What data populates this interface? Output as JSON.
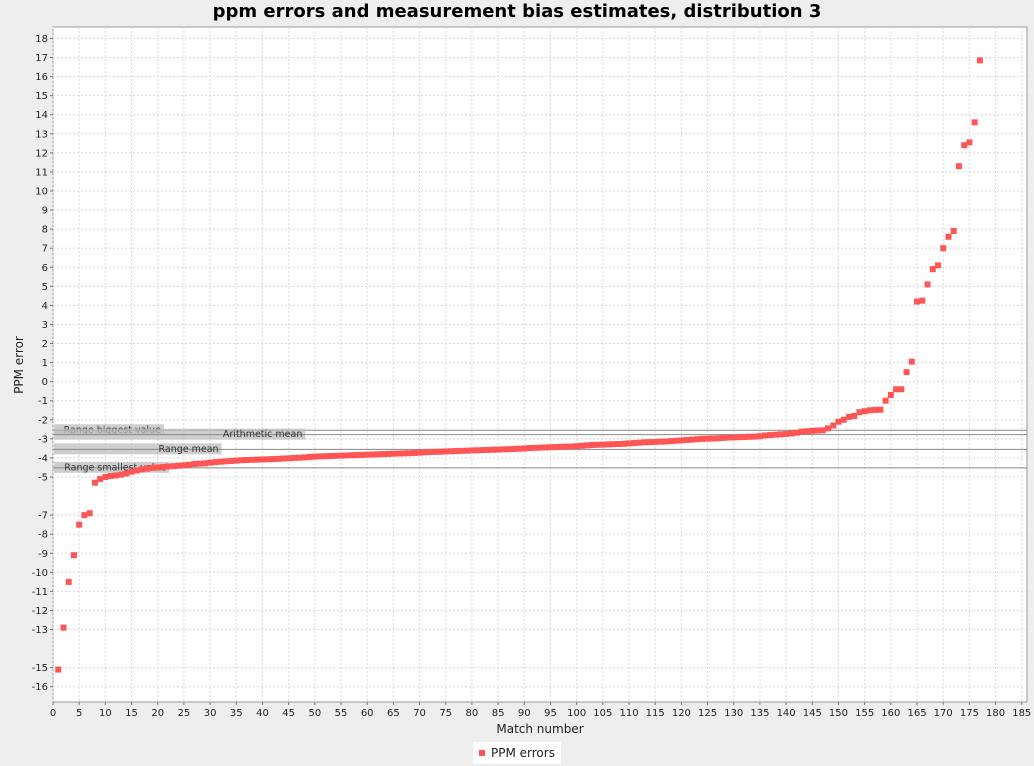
{
  "chart_data": {
    "type": "scatter",
    "title": "ppm errors and measurement bias estimates, distribution 3",
    "xlabel": "Match number",
    "ylabel": "PPM error",
    "xlim": [
      0,
      186
    ],
    "ylim": [
      -16.8,
      18.6
    ],
    "xticks": [
      0,
      5,
      10,
      15,
      20,
      25,
      30,
      35,
      40,
      45,
      50,
      55,
      60,
      65,
      70,
      75,
      80,
      85,
      90,
      95,
      100,
      105,
      110,
      115,
      120,
      125,
      130,
      135,
      140,
      145,
      150,
      155,
      160,
      165,
      170,
      175,
      180,
      185
    ],
    "yticks": [
      18,
      17,
      16,
      15,
      14,
      13,
      12,
      11,
      10,
      9,
      8,
      7,
      6,
      5,
      4,
      3,
      2,
      1,
      0,
      -1,
      -2,
      -3,
      -4,
      -5,
      -7,
      -8,
      -9,
      -10,
      -11,
      -12,
      -13,
      -15,
      -16
    ],
    "grid": true,
    "legend_position": "bottom-center",
    "series": [
      {
        "name": "PPM errors",
        "color": "#ff5555",
        "marker": "square",
        "points": [
          [
            1,
            -15.1
          ],
          [
            2,
            -12.9
          ],
          [
            3,
            -10.5
          ],
          [
            4,
            -9.1
          ],
          [
            5,
            -7.5
          ],
          [
            6,
            -7.0
          ],
          [
            7,
            -6.9
          ],
          [
            8,
            -5.3
          ],
          [
            9,
            -5.1
          ],
          [
            10,
            -5.0
          ],
          [
            11,
            -4.95
          ],
          [
            12,
            -4.92
          ],
          [
            13,
            -4.88
          ],
          [
            14,
            -4.82
          ],
          [
            15,
            -4.72
          ],
          [
            16,
            -4.66
          ],
          [
            17,
            -4.6
          ],
          [
            18,
            -4.56
          ],
          [
            19,
            -4.52
          ],
          [
            20,
            -4.5
          ],
          [
            21,
            -4.48
          ],
          [
            22,
            -4.45
          ],
          [
            23,
            -4.43
          ],
          [
            24,
            -4.41
          ],
          [
            25,
            -4.38
          ],
          [
            26,
            -4.36
          ],
          [
            27,
            -4.32
          ],
          [
            28,
            -4.3
          ],
          [
            29,
            -4.28
          ],
          [
            30,
            -4.25
          ],
          [
            31,
            -4.22
          ],
          [
            32,
            -4.2
          ],
          [
            33,
            -4.18
          ],
          [
            34,
            -4.16
          ],
          [
            35,
            -4.14
          ],
          [
            36,
            -4.12
          ],
          [
            37,
            -4.11
          ],
          [
            38,
            -4.1
          ],
          [
            39,
            -4.09
          ],
          [
            40,
            -4.08
          ],
          [
            41,
            -4.07
          ],
          [
            42,
            -4.06
          ],
          [
            43,
            -4.05
          ],
          [
            44,
            -4.03
          ],
          [
            45,
            -4.02
          ],
          [
            46,
            -4.0
          ],
          [
            47,
            -3.99
          ],
          [
            48,
            -3.97
          ],
          [
            49,
            -3.95
          ],
          [
            50,
            -3.93
          ],
          [
            51,
            -3.92
          ],
          [
            52,
            -3.91
          ],
          [
            53,
            -3.9
          ],
          [
            54,
            -3.89
          ],
          [
            55,
            -3.88
          ],
          [
            56,
            -3.87
          ],
          [
            57,
            -3.86
          ],
          [
            58,
            -3.85
          ],
          [
            59,
            -3.84
          ],
          [
            60,
            -3.83
          ],
          [
            61,
            -3.82
          ],
          [
            62,
            -3.81
          ],
          [
            63,
            -3.8
          ],
          [
            64,
            -3.79
          ],
          [
            65,
            -3.78
          ],
          [
            66,
            -3.77
          ],
          [
            67,
            -3.76
          ],
          [
            68,
            -3.75
          ],
          [
            69,
            -3.74
          ],
          [
            70,
            -3.72
          ],
          [
            71,
            -3.7
          ],
          [
            72,
            -3.69
          ],
          [
            73,
            -3.68
          ],
          [
            74,
            -3.67
          ],
          [
            75,
            -3.66
          ],
          [
            76,
            -3.65
          ],
          [
            77,
            -3.64
          ],
          [
            78,
            -3.63
          ],
          [
            79,
            -3.62
          ],
          [
            80,
            -3.61
          ],
          [
            81,
            -3.6
          ],
          [
            82,
            -3.59
          ],
          [
            83,
            -3.58
          ],
          [
            84,
            -3.57
          ],
          [
            85,
            -3.56
          ],
          [
            86,
            -3.55
          ],
          [
            87,
            -3.54
          ],
          [
            88,
            -3.53
          ],
          [
            89,
            -3.52
          ],
          [
            90,
            -3.5
          ],
          [
            91,
            -3.48
          ],
          [
            92,
            -3.47
          ],
          [
            93,
            -3.46
          ],
          [
            94,
            -3.45
          ],
          [
            95,
            -3.44
          ],
          [
            96,
            -3.43
          ],
          [
            97,
            -3.42
          ],
          [
            98,
            -3.41
          ],
          [
            99,
            -3.4
          ],
          [
            100,
            -3.38
          ],
          [
            101,
            -3.36
          ],
          [
            102,
            -3.34
          ],
          [
            103,
            -3.32
          ],
          [
            104,
            -3.31
          ],
          [
            105,
            -3.3
          ],
          [
            106,
            -3.29
          ],
          [
            107,
            -3.28
          ],
          [
            108,
            -3.27
          ],
          [
            109,
            -3.26
          ],
          [
            110,
            -3.24
          ],
          [
            111,
            -3.22
          ],
          [
            112,
            -3.2
          ],
          [
            113,
            -3.18
          ],
          [
            114,
            -3.17
          ],
          [
            115,
            -3.16
          ],
          [
            116,
            -3.15
          ],
          [
            117,
            -3.14
          ],
          [
            118,
            -3.12
          ],
          [
            119,
            -3.1
          ],
          [
            120,
            -3.08
          ],
          [
            121,
            -3.06
          ],
          [
            122,
            -3.04
          ],
          [
            123,
            -3.02
          ],
          [
            124,
            -3.0
          ],
          [
            125,
            -2.99
          ],
          [
            126,
            -2.98
          ],
          [
            127,
            -2.97
          ],
          [
            128,
            -2.95
          ],
          [
            129,
            -2.93
          ],
          [
            130,
            -2.92
          ],
          [
            131,
            -2.91
          ],
          [
            132,
            -2.9
          ],
          [
            133,
            -2.89
          ],
          [
            134,
            -2.88
          ],
          [
            135,
            -2.86
          ],
          [
            136,
            -2.82
          ],
          [
            137,
            -2.8
          ],
          [
            138,
            -2.78
          ],
          [
            139,
            -2.76
          ],
          [
            140,
            -2.74
          ],
          [
            141,
            -2.72
          ],
          [
            142,
            -2.68
          ],
          [
            143,
            -2.62
          ],
          [
            144,
            -2.6
          ],
          [
            145,
            -2.58
          ],
          [
            146,
            -2.56
          ],
          [
            147,
            -2.55
          ],
          [
            148,
            -2.45
          ],
          [
            149,
            -2.3
          ],
          [
            150,
            -2.1
          ],
          [
            151,
            -2.0
          ],
          [
            152,
            -1.85
          ],
          [
            153,
            -1.8
          ],
          [
            154,
            -1.6
          ],
          [
            155,
            -1.55
          ],
          [
            156,
            -1.5
          ],
          [
            157,
            -1.48
          ],
          [
            158,
            -1.47
          ],
          [
            159,
            -1.0
          ],
          [
            160,
            -0.7
          ],
          [
            161,
            -0.4
          ],
          [
            162,
            -0.4
          ],
          [
            163,
            0.5
          ],
          [
            164,
            1.05
          ],
          [
            165,
            4.2
          ],
          [
            166,
            4.25
          ],
          [
            167,
            5.1
          ],
          [
            168,
            5.9
          ],
          [
            169,
            6.1
          ],
          [
            170,
            7.0
          ],
          [
            171,
            7.6
          ],
          [
            172,
            7.9
          ],
          [
            173,
            11.3
          ],
          [
            174,
            12.4
          ],
          [
            175,
            12.55
          ],
          [
            176,
            13.6
          ],
          [
            177,
            16.85
          ]
        ]
      }
    ],
    "markers": [
      {
        "label": "Range biggest value",
        "value": -2.55,
        "label_x": [
          0,
          21
        ]
      },
      {
        "label": "Arithmetic mean",
        "value": -2.78,
        "label_x": [
          0,
          48
        ]
      },
      {
        "label": "Range mean",
        "value": -3.55,
        "label_x": [
          0,
          32
        ]
      },
      {
        "label": "Range smallest value",
        "value": -4.52,
        "label_x": [
          0,
          22
        ]
      }
    ]
  }
}
